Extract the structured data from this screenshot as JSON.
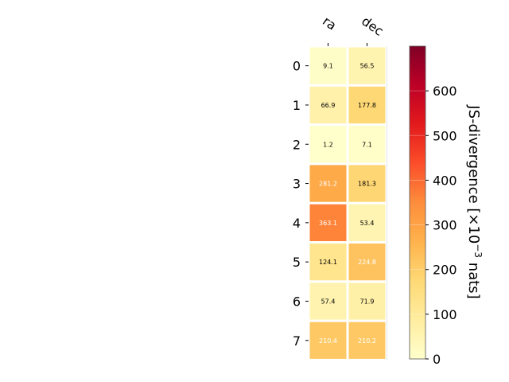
{
  "chart_data": {
    "type": "heatmap",
    "columns": [
      "ra",
      "dec"
    ],
    "rows": [
      "0",
      "1",
      "2",
      "3",
      "4",
      "5",
      "6",
      "7"
    ],
    "values": [
      [
        9.1,
        56.5
      ],
      [
        66.9,
        177.8
      ],
      [
        1.2,
        7.1
      ],
      [
        281.2,
        181.3
      ],
      [
        363.1,
        53.4
      ],
      [
        124.1,
        224.8
      ],
      [
        57.4,
        71.9
      ],
      [
        210.4,
        210.2
      ]
    ],
    "value_labels": [
      [
        "9.1",
        "56.5"
      ],
      [
        "66.9",
        "177.8"
      ],
      [
        "1.2",
        "7.1"
      ],
      [
        "281.2",
        "181.3"
      ],
      [
        "363.1",
        "53.4"
      ],
      [
        "124.1",
        "224.8"
      ],
      [
        "57.4",
        "71.9"
      ],
      [
        "210.4",
        "210.2"
      ]
    ],
    "colorbar": {
      "label_prefix": "JS-divergence [×10",
      "label_exponent": "−3",
      "label_suffix": " nats]",
      "range": [
        0,
        700
      ],
      "ticks": [
        0,
        100,
        200,
        300,
        400,
        500,
        600
      ],
      "tick_labels": [
        "0",
        "100",
        "200",
        "300",
        "400",
        "500",
        "600"
      ],
      "colormap": "YlOrRd",
      "colormap_stops": [
        "#ffffcc",
        "#ffeda0",
        "#fed976",
        "#feb24c",
        "#fd8d3c",
        "#fc4e2a",
        "#e31a1c",
        "#bd0026",
        "#800026"
      ]
    },
    "light_text_threshold": 200,
    "colors": {
      "dark_text": "#000000",
      "light_text": "#ffffff"
    }
  }
}
